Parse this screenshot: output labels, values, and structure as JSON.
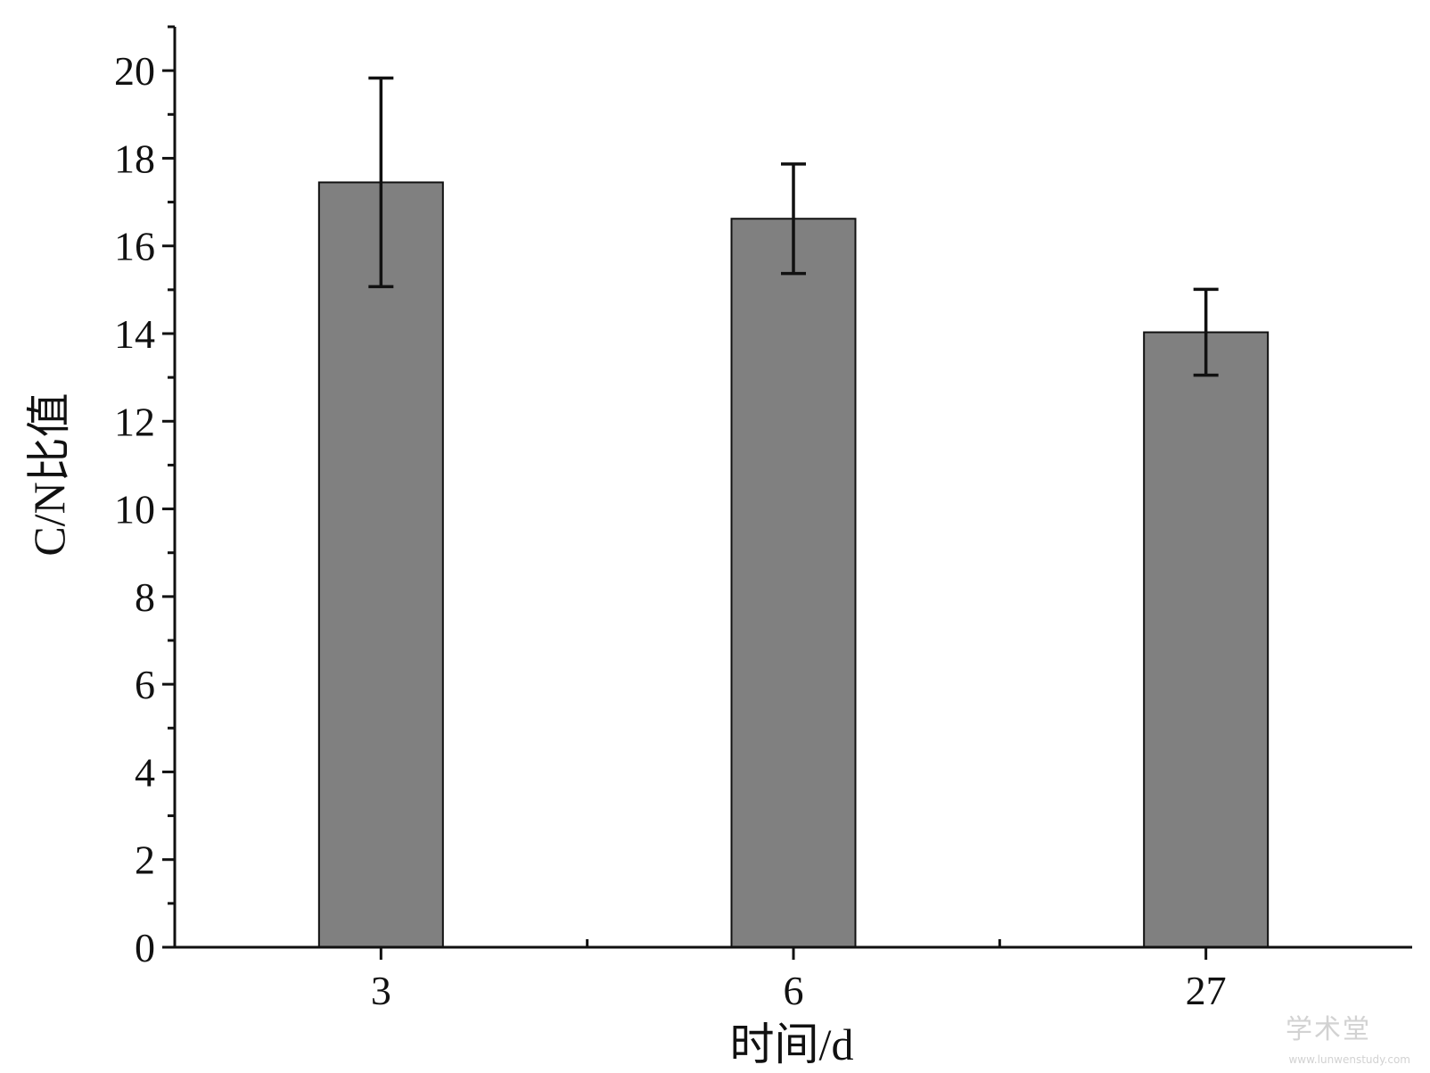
{
  "chart_data": {
    "type": "bar",
    "title": "",
    "xlabel": "时间/d",
    "ylabel": "C/N比值",
    "categories": [
      "3",
      "6",
      "27"
    ],
    "series": [
      {
        "values": [
          17.45,
          16.62,
          14.03
        ],
        "error": [
          2.38,
          1.25,
          0.98
        ]
      }
    ],
    "ylim": [
      0,
      21
    ],
    "yticks": [
      "0",
      "2",
      "4",
      "6",
      "8",
      "10",
      "12",
      "14",
      "16",
      "18",
      "20"
    ],
    "grid": false,
    "colors": {
      "bar_fill": "#808080",
      "bar_stroke": "#111111",
      "axis": "#111111",
      "errorbar": "#111111"
    }
  },
  "watermark": {
    "text": "学术堂",
    "url": "www.lunwenstudy.com"
  }
}
